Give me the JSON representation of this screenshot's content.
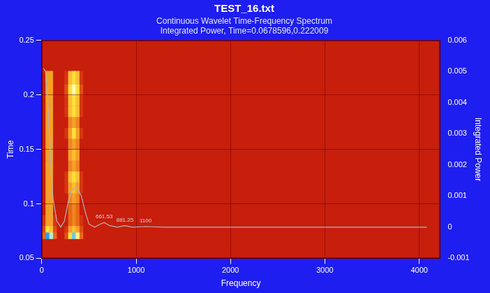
{
  "chart_data": {
    "type": "heatmap",
    "title": "TEST_16.txt",
    "subtitle": [
      "Continuous Wavelet Time-Frequency Spectrum",
      "Integrated Power, Time=0.0678596,0.222009"
    ],
    "x_label": "Frequency",
    "y_label": "Time",
    "y2_label": "Integrated Power",
    "xlim": [
      0,
      4220
    ],
    "xticks": [
      0,
      1000,
      2000,
      3000,
      4000
    ],
    "ylim": [
      0.05,
      0.25
    ],
    "yticks": [
      0.05,
      0.1,
      0.15,
      0.2,
      0.25
    ],
    "y2lim": [
      -0.001,
      0.006
    ],
    "y2ticks": [
      -0.001,
      0,
      0.001,
      0.002,
      0.003,
      0.004,
      0.005,
      0.006
    ],
    "grid": true,
    "heatmap": {
      "x_edges": [
        0,
        40,
        80,
        120,
        160,
        200,
        240,
        280,
        320,
        360,
        400,
        440,
        480
      ],
      "y_edges": [
        0.068,
        0.074,
        0.08,
        0.09,
        0.1,
        0.11,
        0.12,
        0.13,
        0.14,
        0.15,
        0.16,
        0.17,
        0.18,
        0.19,
        0.2,
        0.21,
        0.222
      ],
      "zlim": [
        0,
        1
      ],
      "z": [
        [
          0.3,
          1.0,
          0.9,
          0.3,
          0,
          0,
          0.2,
          0.7,
          0.95,
          0.8,
          0.3,
          0
        ],
        [
          0.2,
          0.7,
          0.6,
          0.2,
          0,
          0,
          0.1,
          0.5,
          0.6,
          0.5,
          0.2,
          0
        ],
        [
          0.1,
          0.5,
          0.5,
          0.1,
          0,
          0,
          0,
          0.3,
          0.4,
          0.3,
          0.1,
          0
        ],
        [
          0,
          0.5,
          0.5,
          0,
          0,
          0,
          0,
          0.3,
          0.4,
          0.3,
          0,
          0
        ],
        [
          0,
          0.5,
          0.5,
          0,
          0,
          0,
          0,
          0.4,
          0.5,
          0.4,
          0,
          0
        ],
        [
          0,
          0.5,
          0.5,
          0,
          0,
          0,
          0.1,
          0.5,
          0.6,
          0.5,
          0.1,
          0
        ],
        [
          0,
          0.5,
          0.5,
          0,
          0,
          0,
          0.1,
          0.6,
          0.7,
          0.6,
          0.1,
          0
        ],
        [
          0,
          0.5,
          0.5,
          0,
          0,
          0,
          0,
          0.4,
          0.5,
          0.4,
          0,
          0
        ],
        [
          0,
          0.5,
          0.5,
          0,
          0,
          0,
          0,
          0.5,
          0.6,
          0.5,
          0,
          0
        ],
        [
          0,
          0.5,
          0.5,
          0,
          0,
          0,
          0,
          0.4,
          0.5,
          0.4,
          0,
          0
        ],
        [
          0,
          0.5,
          0.5,
          0,
          0,
          0,
          0.1,
          0.5,
          0.7,
          0.5,
          0.1,
          0
        ],
        [
          0,
          0.5,
          0.5,
          0,
          0,
          0,
          0,
          0.4,
          0.5,
          0.4,
          0,
          0
        ],
        [
          0,
          0.5,
          0.5,
          0,
          0,
          0,
          0.1,
          0.6,
          0.7,
          0.6,
          0.1,
          0
        ],
        [
          0,
          0.5,
          0.5,
          0,
          0,
          0,
          0.1,
          0.6,
          0.7,
          0.6,
          0.1,
          0
        ],
        [
          0,
          0.5,
          0.5,
          0,
          0,
          0,
          0.2,
          0.7,
          0.85,
          0.7,
          0.2,
          0
        ],
        [
          0,
          0.5,
          0.5,
          0,
          0,
          0,
          0.1,
          0.6,
          0.7,
          0.6,
          0.1,
          0
        ]
      ]
    },
    "series": [
      {
        "type": "line",
        "axis": "y2",
        "color": "#b4b4b4",
        "line_style": "solid",
        "marker": "none",
        "x": [
          20,
          40,
          60,
          80,
          100,
          120,
          160,
          200,
          240,
          280,
          320,
          370,
          420,
          460,
          500,
          560,
          620,
          661,
          720,
          800,
          881,
          960,
          1100,
          1300,
          2000,
          3000,
          4080
        ],
        "values": [
          0.0051,
          0.005,
          0.0042,
          0.003,
          0.0018,
          0.0009,
          0.0002,
          0,
          0.0002,
          0.0008,
          0.0012,
          0.0013,
          0.001,
          0.0005,
          0.0001,
          0,
          0.0001,
          0.00015,
          5e-05,
          0,
          5e-05,
          0,
          2e-05,
          0,
          0,
          0,
          0
        ]
      }
    ],
    "annotations": [
      {
        "x": 661,
        "y": 0.00015,
        "text": "661.53",
        "axis": "y2"
      },
      {
        "x": 881,
        "y": 5e-05,
        "text": "881.25",
        "axis": "y2"
      },
      {
        "x": 1100,
        "y": 2e-05,
        "text": "1100",
        "axis": "y2"
      }
    ]
  }
}
